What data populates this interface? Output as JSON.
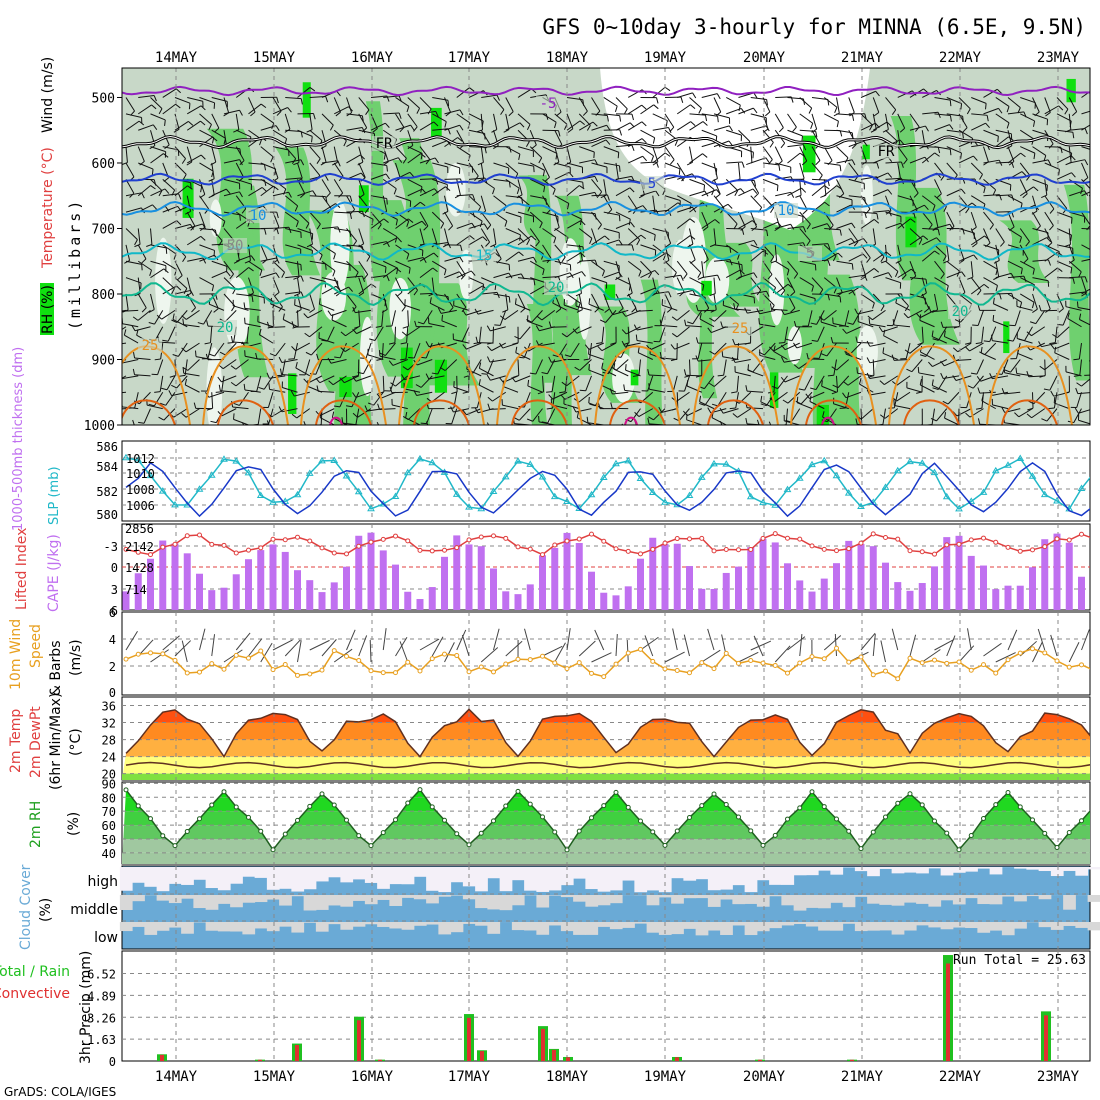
{
  "title": "GFS 0~10day 3-hourly for MINNA (6.5E, 9.5N)",
  "footer": "GrADS: COLA/IGES",
  "dates": [
    "14MAY",
    "15MAY",
    "16MAY",
    "17MAY",
    "18MAY",
    "19MAY",
    "20MAY",
    "21MAY",
    "22MAY",
    "23MAY"
  ],
  "colors": {
    "rh_light": "#c8d8c8",
    "rh_mid": "#6fd06f",
    "rh_high": "#10e010",
    "temp": "#e04040",
    "cloud": "#6aaad6",
    "cape": "#c070f0",
    "precip_total": "#20c020",
    "precip_conv": "#e03030",
    "slp": "#20b8c8",
    "thk": "#1838c8"
  },
  "panel1": {
    "ylabels": [
      "RH (%)",
      "Temperature (°C)",
      "Wind (m/s)",
      "(millibars)"
    ],
    "levels": [
      "500",
      "600",
      "700",
      "800",
      "900",
      "1000"
    ],
    "contour_labels": [
      "-5",
      "FR",
      "FR",
      "5",
      "10",
      "10",
      "15",
      "20",
      "20",
      "20",
      "25",
      "25",
      "50",
      "5"
    ]
  },
  "panel2": {
    "ylabel_left": "1000-500mb thickness (dm)",
    "ylabel_right": "SLP (mb)",
    "left_ticks": [
      "586",
      "584",
      "582",
      "580"
    ],
    "right_ticks": [
      "1012",
      "1010",
      "1008",
      "1006"
    ]
  },
  "panel3": {
    "ylabel_left": "Lifted Index",
    "ylabel_right": "CAPE (J/kg)",
    "left_ticks": [
      "-3",
      "0",
      "3",
      "6"
    ],
    "right_ticks": [
      "2856",
      "2142",
      "1428",
      "714"
    ]
  },
  "panel4": {
    "ylabel1": "10m Wind",
    "ylabel2": "Speed",
    "ylabel3": "& Barbs",
    "ylabel4": "(m/s)",
    "ticks": [
      "6",
      "4",
      "2",
      "0"
    ]
  },
  "panel5": {
    "ylabel1": "2m Temp",
    "ylabel2": "2m DewPt",
    "ylabel3": "(6hr Min/Max)",
    "ylabel4": "(°C)",
    "ticks": [
      "36",
      "32",
      "28",
      "24",
      "20"
    ]
  },
  "panel6": {
    "ylabel1": "2m RH",
    "ylabel2": "(%)",
    "ticks": [
      "90",
      "80",
      "70",
      "60",
      "50",
      "40"
    ]
  },
  "panel7": {
    "ylabel1": "Cloud Cover",
    "ylabel2": "(%)",
    "levels": [
      "high",
      "middle",
      "low"
    ]
  },
  "panel8": {
    "ylabel1": "Total / Rain",
    "ylabel2": "Convective",
    "ylabel3": "3hr Precip (mm)",
    "ticks": [
      "6.52",
      "4.89",
      "3.26",
      "1.63",
      "0"
    ],
    "run_total": "Run Total = 25.63"
  },
  "chart_data": {
    "type": "line",
    "x": [
      "14MAY",
      "15MAY",
      "16MAY",
      "17MAY",
      "18MAY",
      "19MAY",
      "20MAY",
      "21MAY",
      "22MAY",
      "23MAY"
    ],
    "series": [
      {
        "name": "SLP (mb)",
        "values": [
          1009.8,
          1006.5,
          1010.6,
          1006.6,
          1010.2,
          1007.0,
          1010.1,
          1011.4,
          1008.7,
          1006.2
        ]
      },
      {
        "name": "1000-500mb thickness (dm)",
        "values": [
          583.6,
          580.2,
          583.8,
          580.6,
          583.0,
          580.0,
          584.3,
          582.2,
          580.2,
          582.6
        ]
      },
      {
        "name": "2m Temp max (C)",
        "values": [
          33,
          30,
          35,
          34,
          34,
          35,
          35,
          37,
          35,
          35
        ]
      },
      {
        "name": "2m Temp min (C)",
        "values": [
          23,
          25,
          23,
          24,
          24,
          23,
          23,
          24,
          23,
          24
        ]
      },
      {
        "name": "2m RH max (%)",
        "values": [
          84,
          82,
          86,
          89,
          88,
          88,
          84,
          85,
          84,
          88
        ]
      },
      {
        "name": "2m RH min (%)",
        "values": [
          44,
          52,
          45,
          44,
          43,
          40,
          40,
          38,
          40,
          47
        ]
      },
      {
        "name": "CAPE (J/kg)",
        "values": [
          1300,
          1800,
          600,
          2200,
          1900,
          100,
          2100,
          2200,
          1700,
          1100
        ]
      },
      {
        "name": "10m Wind speed (m/s)",
        "values": [
          2.0,
          2.4,
          2.2,
          2.1,
          1.8,
          2.3,
          2.4,
          2.2,
          2.2,
          2.6
        ]
      }
    ],
    "precip_events": [
      {
        "date": "14MAY",
        "total": 0.5
      },
      {
        "date": "15MAY",
        "total": 1.3
      },
      {
        "date": "15MAY",
        "total": 3.3
      },
      {
        "date": "17MAY",
        "total": 3.5
      },
      {
        "date": "17MAY",
        "total": 2.6
      },
      {
        "date": "17MAY",
        "total": 0.9
      },
      {
        "date": "21MAY",
        "total": 7.9
      },
      {
        "date": "22MAY",
        "total": 3.7
      }
    ],
    "title": "GFS 0~10day 3-hourly for MINNA (6.5E, 9.5N)"
  }
}
